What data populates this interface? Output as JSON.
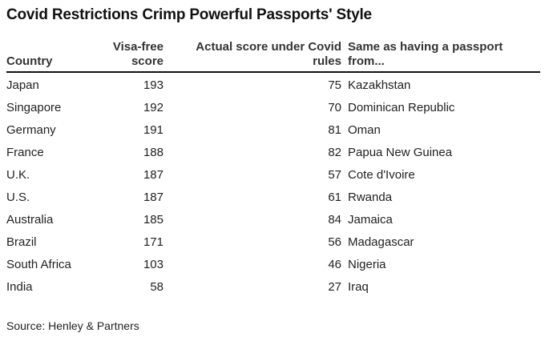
{
  "title": "Covid Restrictions Crimp Powerful Passports' Style",
  "columns": {
    "country": "Country",
    "visa_free": "Visa-free score",
    "actual": "Actual score under Covid rules",
    "same_as": "Same as having a passport from..."
  },
  "rows": [
    {
      "country": "Japan",
      "visa_free": "193",
      "actual": "75",
      "same_as": "Kazakhstan"
    },
    {
      "country": "Singapore",
      "visa_free": "192",
      "actual": "70",
      "same_as": "Dominican Republic"
    },
    {
      "country": "Germany",
      "visa_free": "191",
      "actual": "81",
      "same_as": "Oman"
    },
    {
      "country": "France",
      "visa_free": "188",
      "actual": "82",
      "same_as": "Papua New Guinea"
    },
    {
      "country": "U.K.",
      "visa_free": "187",
      "actual": "57",
      "same_as": "Cote d'Ivoire"
    },
    {
      "country": "U.S.",
      "visa_free": "187",
      "actual": "61",
      "same_as": "Rwanda"
    },
    {
      "country": "Australia",
      "visa_free": "185",
      "actual": "84",
      "same_as": "Jamaica"
    },
    {
      "country": "Brazil",
      "visa_free": "171",
      "actual": "56",
      "same_as": "Madagascar"
    },
    {
      "country": "South Africa",
      "visa_free": "103",
      "actual": "46",
      "same_as": "Nigeria"
    },
    {
      "country": "India",
      "visa_free": "58",
      "actual": "27",
      "same_as": "Iraq"
    }
  ],
  "source": "Source: Henley & Partners"
}
